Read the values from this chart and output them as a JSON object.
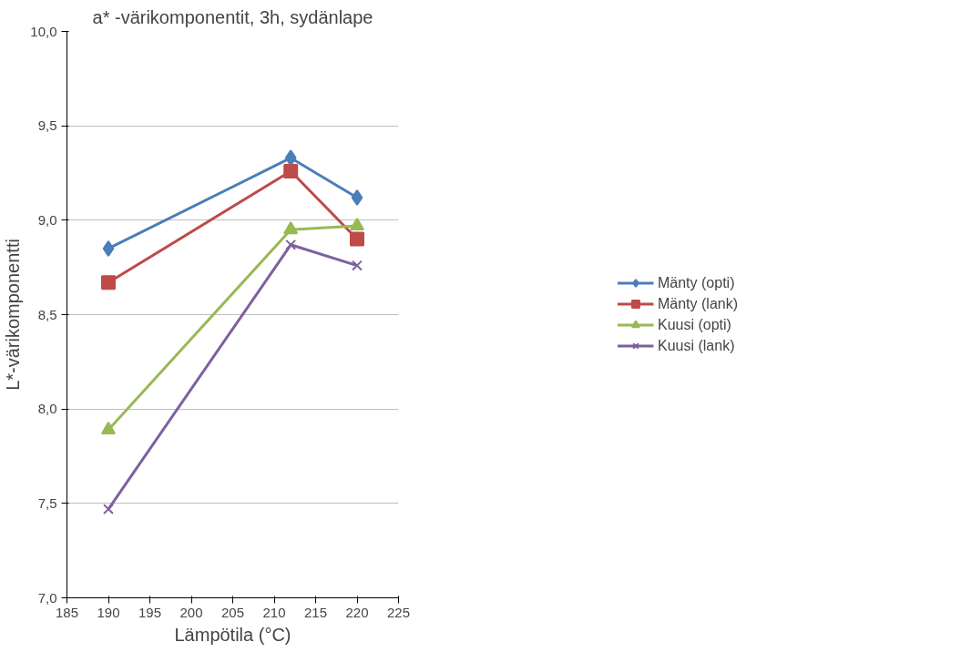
{
  "chart_data": {
    "type": "line",
    "title": "a* -värikomponentit, 3h, sydänlape",
    "xlabel": "Lämpötila (°C)",
    "ylabel": "L*-värikomponentti",
    "x": [
      190,
      212,
      220
    ],
    "series": [
      {
        "name": "Mänty (opti)",
        "color": "#4a7ebb",
        "marker": "diamond",
        "values": [
          8.85,
          9.33,
          9.12
        ]
      },
      {
        "name": "Mänty (lank)",
        "color": "#be4b48",
        "marker": "square",
        "values": [
          8.67,
          9.26,
          8.9
        ]
      },
      {
        "name": "Kuusi (opti)",
        "color": "#98b954",
        "marker": "triangle",
        "values": [
          7.89,
          8.95,
          8.97
        ]
      },
      {
        "name": "Kuusi (lank)",
        "color": "#7d60a0",
        "marker": "cross",
        "values": [
          7.47,
          8.87,
          8.76
        ]
      }
    ],
    "xlim": [
      185,
      225
    ],
    "xticks": [
      185,
      190,
      195,
      200,
      205,
      210,
      215,
      220,
      225
    ],
    "ylim": [
      7.0,
      10.0
    ],
    "yticks": [
      {
        "value": 7.0,
        "label": "7,0"
      },
      {
        "value": 7.5,
        "label": "7,5"
      },
      {
        "value": 8.0,
        "label": "8,0"
      },
      {
        "value": 8.5,
        "label": "8,5"
      },
      {
        "value": 9.0,
        "label": "9,0"
      },
      {
        "value": 9.5,
        "label": "9,5"
      },
      {
        "value": 10.0,
        "label": "10,0"
      }
    ],
    "grid": "y",
    "legend": "right",
    "line_style": "solid"
  }
}
